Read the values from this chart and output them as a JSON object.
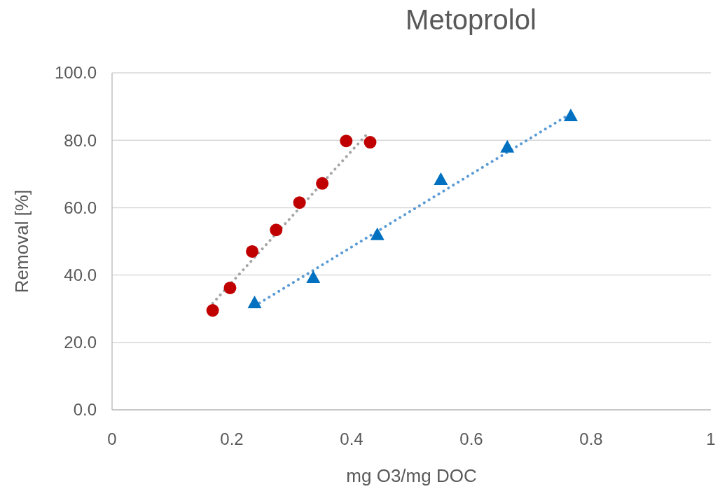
{
  "chart_data": {
    "type": "scatter",
    "title": "Metoprolol",
    "xlabel": "mg O3/mg DOC",
    "ylabel": "Removal [%]",
    "xlim": [
      0,
      1
    ],
    "xticks": [
      0,
      0.2,
      0.4,
      0.6,
      0.8,
      1
    ],
    "ylim": [
      0,
      100
    ],
    "yticks": [
      {
        "value": 0,
        "label": "0.0"
      },
      {
        "value": 20,
        "label": "20.0"
      },
      {
        "value": 40,
        "label": "40.0"
      },
      {
        "value": 60,
        "label": "60.0"
      },
      {
        "value": 80,
        "label": "80.0"
      },
      {
        "value": 100,
        "label": "100.0"
      }
    ],
    "grid": "y",
    "series": [
      {
        "type": "line",
        "color": "#a5a5a5",
        "line_style": "dotted",
        "marker": "none",
        "x": [
          0.168,
          0.424
        ],
        "values": [
          31.6,
          81.5
        ]
      },
      {
        "type": "line",
        "color": "#5b9bd5",
        "line_style": "dotted",
        "marker": "none",
        "x": [
          0.238,
          0.766
        ],
        "values": [
          30.8,
          87.9
        ]
      },
      {
        "color": "#c00000",
        "marker": "circle",
        "x": [
          0.168,
          0.197,
          0.234,
          0.274,
          0.313,
          0.351,
          0.391,
          0.431
        ],
        "values": [
          29.5,
          36.2,
          47.0,
          53.4,
          61.5,
          67.2,
          79.8,
          79.4
        ]
      },
      {
        "color": "#0070c0",
        "marker": "triangle",
        "x": [
          0.238,
          0.336,
          0.443,
          0.549,
          0.66,
          0.766
        ],
        "values": [
          31.6,
          39.1,
          51.8,
          68.2,
          77.8,
          87.1
        ]
      }
    ]
  }
}
